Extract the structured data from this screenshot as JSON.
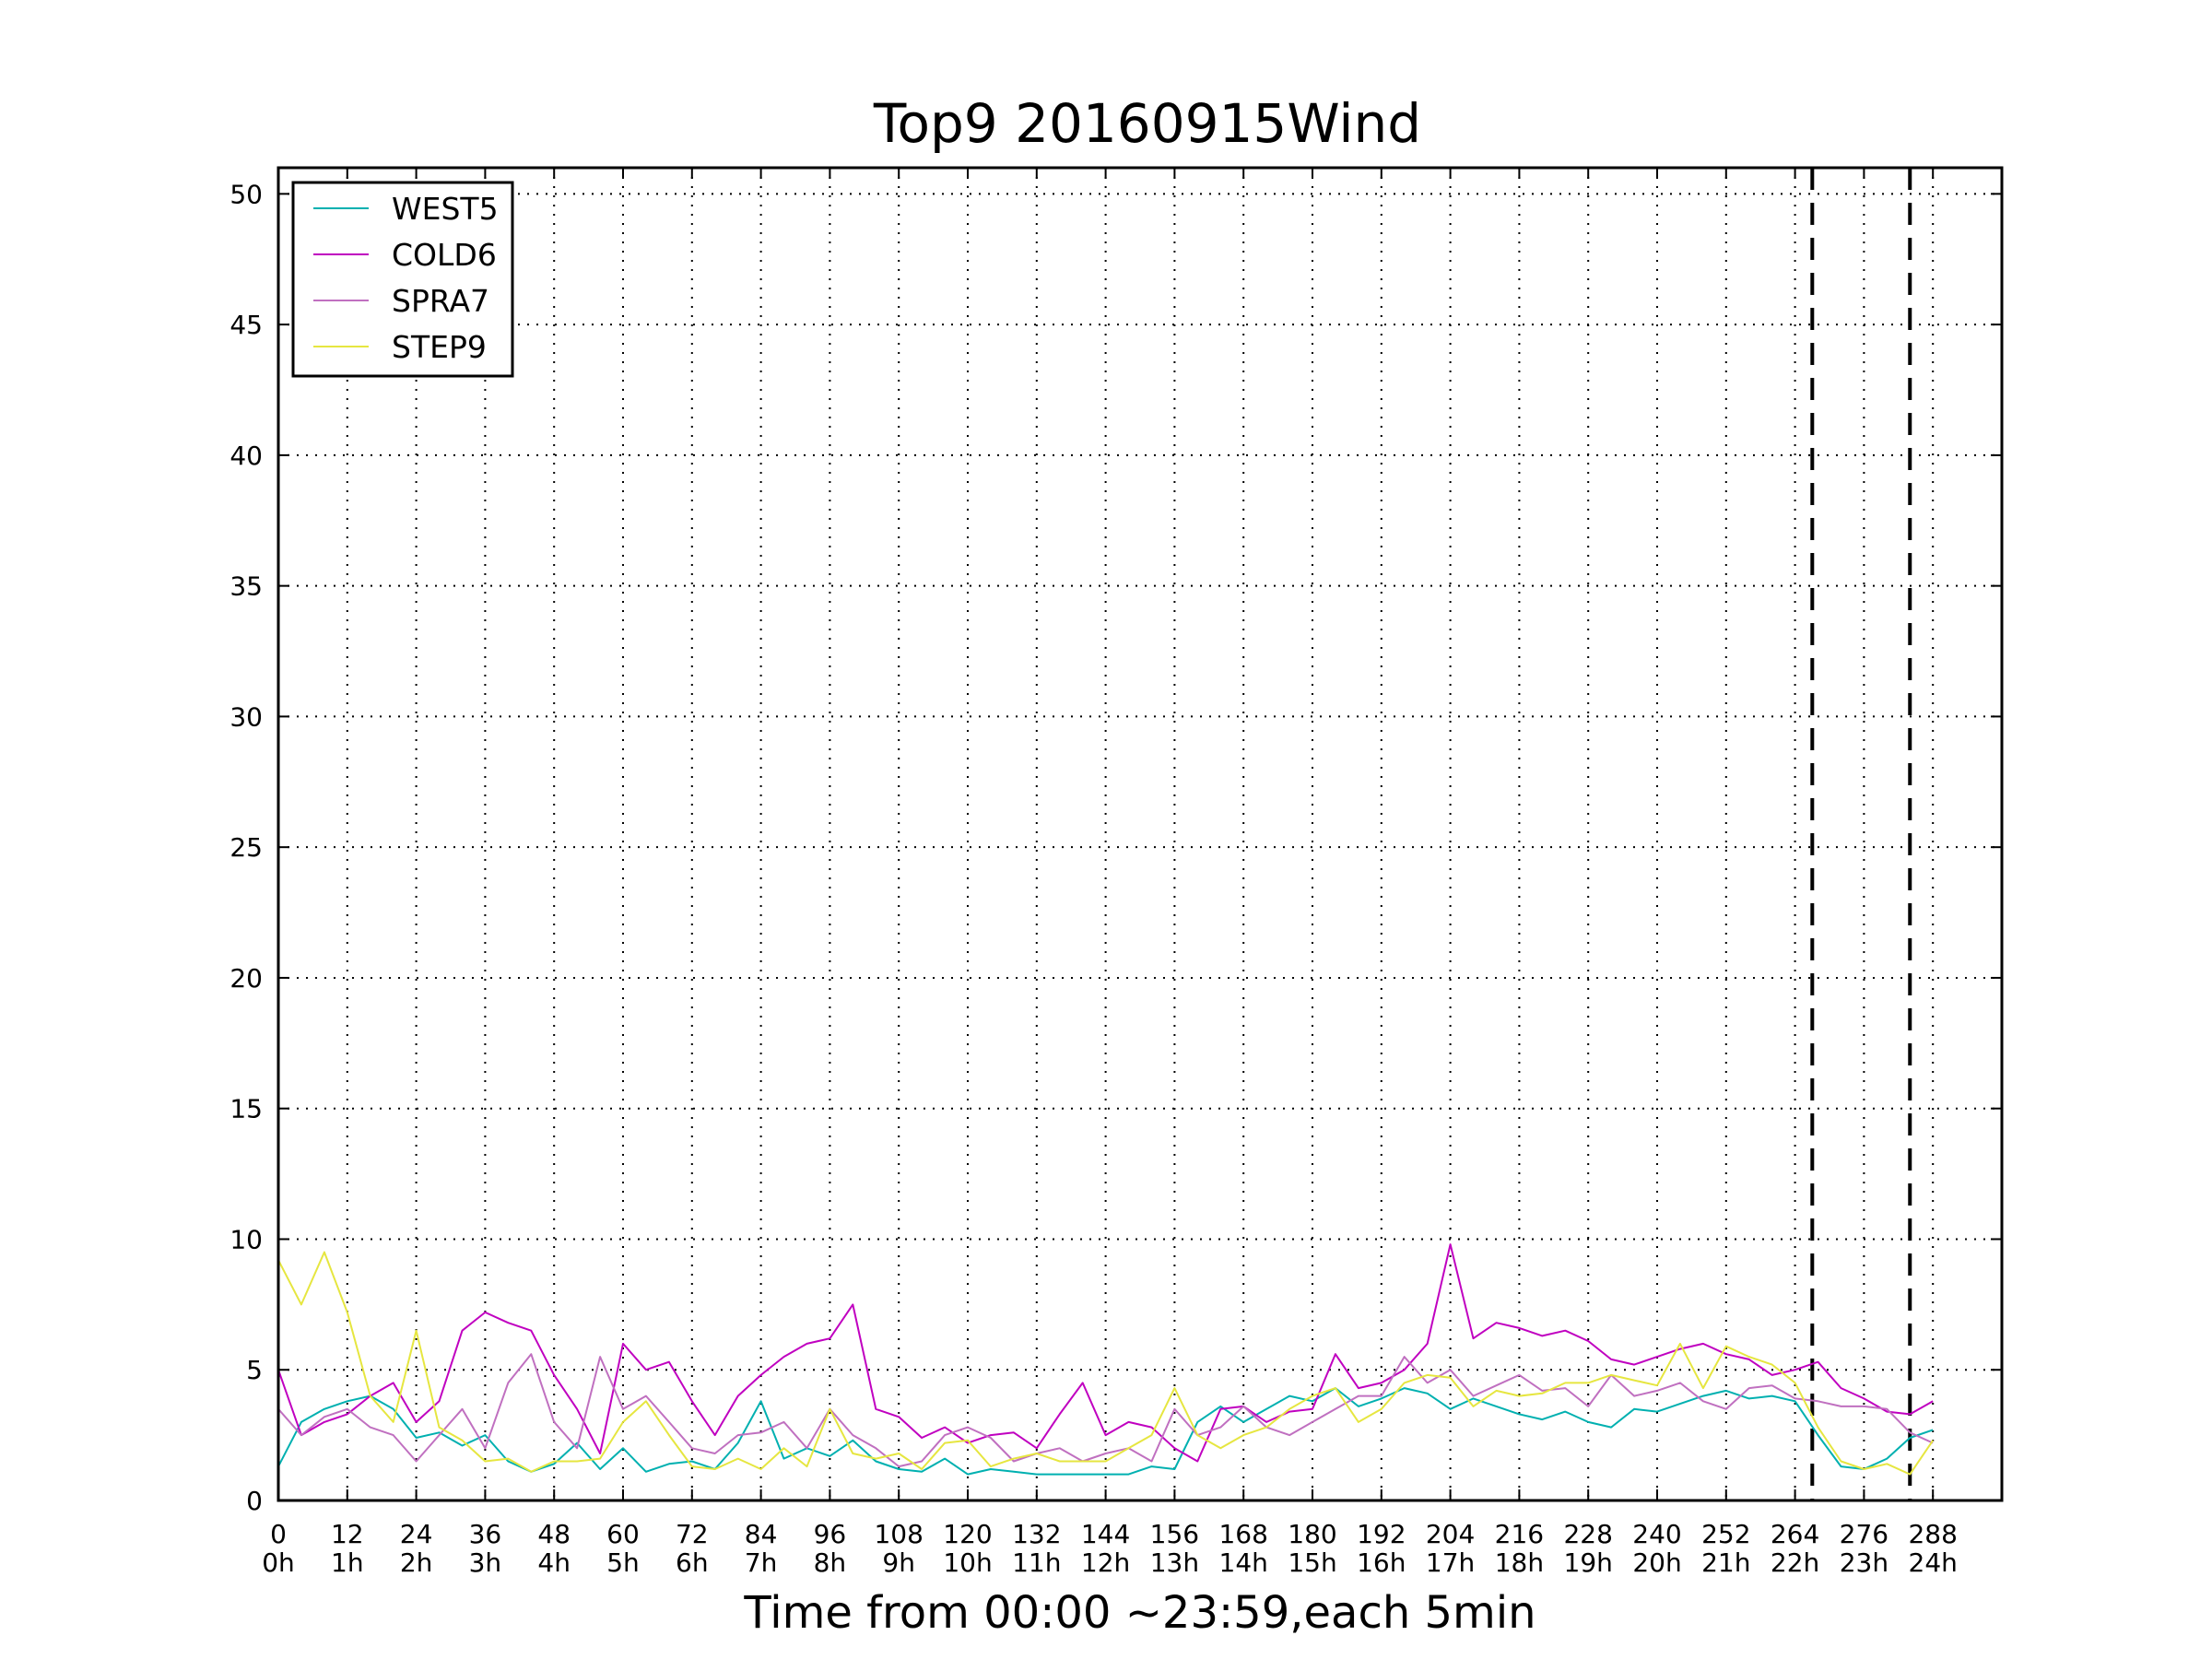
{
  "chart_data": {
    "type": "line",
    "title": "Top9 20160915Wind",
    "xlabel": "Time from 00:00 ~23:59,each 5min",
    "ylabel": "",
    "xlim": [
      0,
      300
    ],
    "ylim": [
      0,
      51
    ],
    "grid": true,
    "legend_position": "top-left",
    "x_ticks": [
      {
        "value": 0,
        "label": "0",
        "hour": "0h"
      },
      {
        "value": 12,
        "label": "12",
        "hour": "1h"
      },
      {
        "value": 24,
        "label": "24",
        "hour": "2h"
      },
      {
        "value": 36,
        "label": "36",
        "hour": "3h"
      },
      {
        "value": 48,
        "label": "48",
        "hour": "4h"
      },
      {
        "value": 60,
        "label": "60",
        "hour": "5h"
      },
      {
        "value": 72,
        "label": "72",
        "hour": "6h"
      },
      {
        "value": 84,
        "label": "84",
        "hour": "7h"
      },
      {
        "value": 96,
        "label": "96",
        "hour": "8h"
      },
      {
        "value": 108,
        "label": "108",
        "hour": "9h"
      },
      {
        "value": 120,
        "label": "120",
        "hour": "10h"
      },
      {
        "value": 132,
        "label": "132",
        "hour": "11h"
      },
      {
        "value": 144,
        "label": "144",
        "hour": "12h"
      },
      {
        "value": 156,
        "label": "156",
        "hour": "13h"
      },
      {
        "value": 168,
        "label": "168",
        "hour": "14h"
      },
      {
        "value": 180,
        "label": "180",
        "hour": "15h"
      },
      {
        "value": 192,
        "label": "192",
        "hour": "16h"
      },
      {
        "value": 204,
        "label": "204",
        "hour": "17h"
      },
      {
        "value": 216,
        "label": "216",
        "hour": "18h"
      },
      {
        "value": 228,
        "label": "228",
        "hour": "19h"
      },
      {
        "value": 240,
        "label": "240",
        "hour": "20h"
      },
      {
        "value": 252,
        "label": "252",
        "hour": "21h"
      },
      {
        "value": 264,
        "label": "264",
        "hour": "22h"
      },
      {
        "value": 276,
        "label": "276",
        "hour": "23h"
      },
      {
        "value": 288,
        "label": "288",
        "hour": "24h"
      }
    ],
    "y_ticks": [
      0,
      5,
      10,
      15,
      20,
      25,
      30,
      35,
      40,
      45,
      50
    ],
    "vertical_markers": [
      267,
      284
    ],
    "series": [
      {
        "name": "WEST5",
        "color": "#00b0b0",
        "x": [
          0,
          4,
          8,
          12,
          16,
          20,
          24,
          28,
          32,
          36,
          40,
          44,
          48,
          52,
          56,
          60,
          64,
          68,
          72,
          76,
          80,
          84,
          88,
          92,
          96,
          100,
          104,
          108,
          112,
          116,
          120,
          124,
          128,
          132,
          136,
          140,
          144,
          148,
          152,
          156,
          160,
          164,
          168,
          172,
          176,
          180,
          184,
          188,
          192,
          196,
          200,
          204,
          208,
          212,
          216,
          220,
          224,
          228,
          232,
          236,
          240,
          244,
          248,
          252,
          256,
          260,
          264,
          268,
          272,
          276,
          280,
          284,
          288
        ],
        "values": [
          1.3,
          3.0,
          3.5,
          3.8,
          4.0,
          3.5,
          2.4,
          2.6,
          2.1,
          2.5,
          1.5,
          1.1,
          1.4,
          2.2,
          1.2,
          2.0,
          1.1,
          1.4,
          1.5,
          1.2,
          2.2,
          3.8,
          1.6,
          2.0,
          1.7,
          2.3,
          1.5,
          1.2,
          1.1,
          1.6,
          1.0,
          1.2,
          1.1,
          1.0,
          1.0,
          1.0,
          1.0,
          1.0,
          1.3,
          1.2,
          3.0,
          3.6,
          3.0,
          3.5,
          4.0,
          3.8,
          4.3,
          3.6,
          3.9,
          4.3,
          4.1,
          3.5,
          3.9,
          3.6,
          3.3,
          3.1,
          3.4,
          3.0,
          2.8,
          3.5,
          3.4,
          3.7,
          4.0,
          4.2,
          3.9,
          4.0,
          3.8,
          2.5,
          1.3,
          1.2,
          1.6,
          2.4,
          2.7
        ]
      },
      {
        "name": "COLD6",
        "color": "#c000c0",
        "x": [
          0,
          4,
          8,
          12,
          16,
          20,
          24,
          28,
          32,
          36,
          40,
          44,
          48,
          52,
          56,
          60,
          64,
          68,
          72,
          76,
          80,
          84,
          88,
          92,
          96,
          100,
          104,
          108,
          112,
          116,
          120,
          124,
          128,
          132,
          136,
          140,
          144,
          148,
          152,
          156,
          160,
          164,
          168,
          172,
          176,
          180,
          184,
          188,
          192,
          196,
          200,
          204,
          208,
          212,
          216,
          220,
          224,
          228,
          232,
          236,
          240,
          244,
          248,
          252,
          256,
          260,
          264,
          268,
          272,
          276,
          280,
          284,
          288
        ],
        "values": [
          5.0,
          2.5,
          3.0,
          3.3,
          4.0,
          4.5,
          3.0,
          3.8,
          6.5,
          7.2,
          6.8,
          6.5,
          4.8,
          3.5,
          1.8,
          6.0,
          5.0,
          5.3,
          3.8,
          2.5,
          4.0,
          4.8,
          5.5,
          6.0,
          6.2,
          7.5,
          3.5,
          3.2,
          2.4,
          2.8,
          2.2,
          2.5,
          2.6,
          2.0,
          3.3,
          4.5,
          2.5,
          3.0,
          2.8,
          2.0,
          1.5,
          3.5,
          3.6,
          3.0,
          3.4,
          3.5,
          5.6,
          4.3,
          4.5,
          5.0,
          6.0,
          9.8,
          6.2,
          6.8,
          6.6,
          6.3,
          6.5,
          6.1,
          5.4,
          5.2,
          5.5,
          5.8,
          6.0,
          5.6,
          5.4,
          4.8,
          5.0,
          5.3,
          4.3,
          3.9,
          3.4,
          3.3,
          3.8
        ]
      },
      {
        "name": "SPRA7",
        "color": "#c070c0",
        "x": [
          0,
          4,
          8,
          12,
          16,
          20,
          24,
          28,
          32,
          36,
          40,
          44,
          48,
          52,
          56,
          60,
          64,
          68,
          72,
          76,
          80,
          84,
          88,
          92,
          96,
          100,
          104,
          108,
          112,
          116,
          120,
          124,
          128,
          132,
          136,
          140,
          144,
          148,
          152,
          156,
          160,
          164,
          168,
          172,
          176,
          180,
          184,
          188,
          192,
          196,
          200,
          204,
          208,
          212,
          216,
          220,
          224,
          228,
          232,
          236,
          240,
          244,
          248,
          252,
          256,
          260,
          264,
          268,
          272,
          276,
          280,
          284,
          288
        ],
        "values": [
          3.5,
          2.5,
          3.2,
          3.5,
          2.8,
          2.5,
          1.5,
          2.5,
          3.5,
          2.0,
          4.5,
          5.6,
          3.0,
          2.0,
          5.5,
          3.5,
          4.0,
          3.0,
          2.0,
          1.8,
          2.5,
          2.6,
          3.0,
          2.0,
          3.5,
          2.5,
          2.0,
          1.3,
          1.5,
          2.5,
          2.8,
          2.4,
          1.5,
          1.8,
          2.0,
          1.5,
          1.8,
          2.0,
          1.5,
          3.5,
          2.5,
          2.8,
          3.6,
          2.8,
          2.5,
          3.0,
          3.5,
          4.0,
          4.0,
          5.5,
          4.5,
          5.0,
          4.0,
          4.4,
          4.8,
          4.2,
          4.3,
          3.6,
          4.8,
          4.0,
          4.2,
          4.5,
          3.8,
          3.5,
          4.3,
          4.4,
          3.9,
          3.8,
          3.6,
          3.6,
          3.5,
          2.6,
          2.2
        ]
      },
      {
        "name": "STEP9",
        "color": "#e6e640",
        "x": [
          0,
          4,
          8,
          12,
          16,
          20,
          24,
          28,
          32,
          36,
          40,
          44,
          48,
          52,
          56,
          60,
          64,
          68,
          72,
          76,
          80,
          84,
          88,
          92,
          96,
          100,
          104,
          108,
          112,
          116,
          120,
          124,
          128,
          132,
          136,
          140,
          144,
          148,
          152,
          156,
          160,
          164,
          168,
          172,
          176,
          180,
          184,
          188,
          192,
          196,
          200,
          204,
          208,
          212,
          216,
          220,
          224,
          228,
          232,
          236,
          240,
          244,
          248,
          252,
          256,
          260,
          264,
          268,
          272,
          276,
          280,
          284,
          288
        ],
        "values": [
          9.2,
          7.5,
          9.5,
          7.2,
          4.0,
          3.0,
          6.5,
          2.8,
          2.3,
          1.5,
          1.6,
          1.1,
          1.5,
          1.5,
          1.6,
          3.0,
          3.8,
          2.5,
          1.3,
          1.2,
          1.6,
          1.2,
          2.0,
          1.3,
          3.5,
          1.8,
          1.6,
          1.8,
          1.2,
          2.2,
          2.3,
          1.3,
          1.6,
          1.8,
          1.5,
          1.5,
          1.5,
          2.0,
          2.5,
          4.3,
          2.5,
          2.0,
          2.5,
          2.8,
          3.5,
          4.0,
          4.3,
          3.0,
          3.5,
          4.5,
          4.8,
          4.7,
          3.6,
          4.2,
          4.0,
          4.1,
          4.5,
          4.5,
          4.8,
          4.6,
          4.4,
          6.0,
          4.3,
          5.9,
          5.5,
          5.2,
          4.5,
          2.8,
          1.5,
          1.2,
          1.4,
          1.0,
          2.3
        ]
      }
    ]
  }
}
